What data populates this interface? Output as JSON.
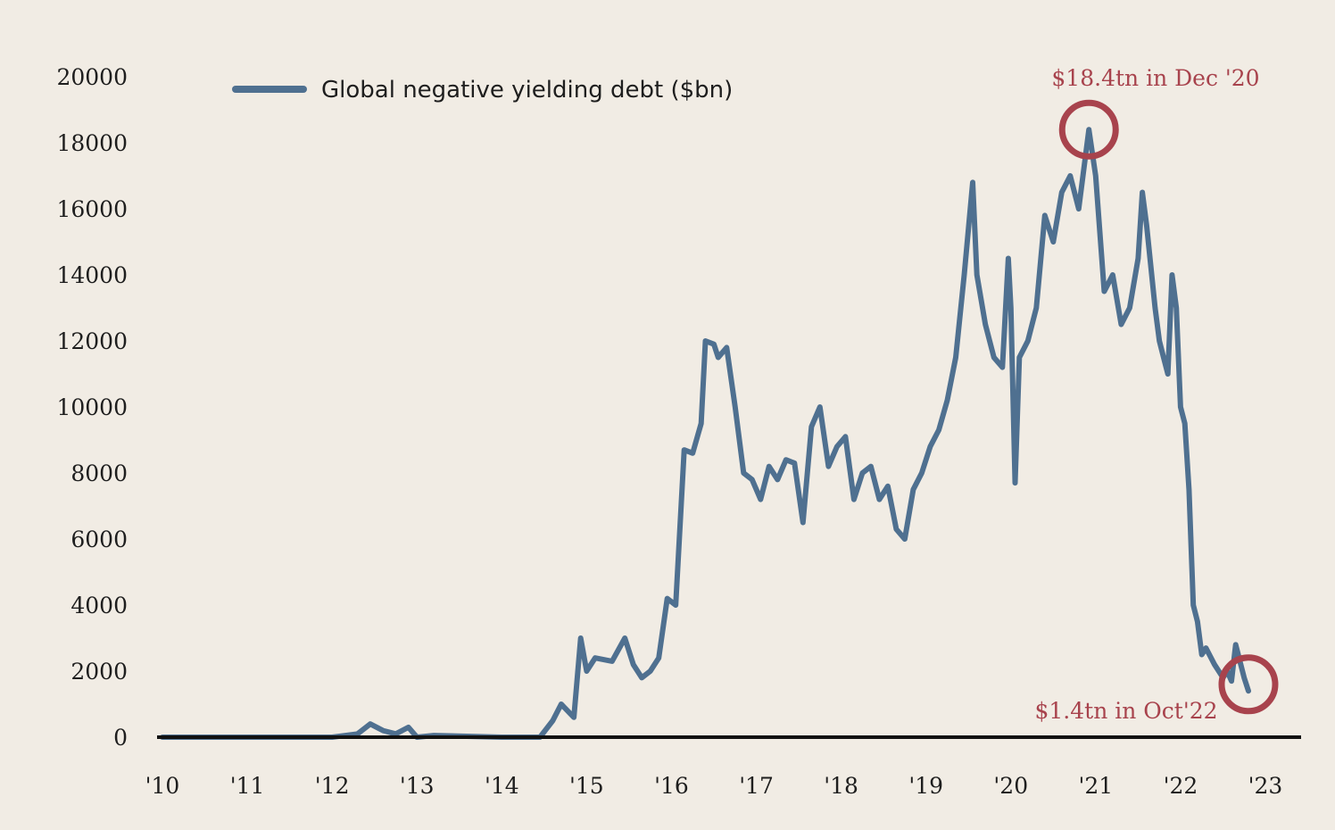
{
  "colors": {
    "background": "#f1ece4",
    "series": "#4f7090",
    "axis": "#111111",
    "annotation": "#a8434d"
  },
  "chart_data": {
    "type": "line",
    "title": "",
    "xlabel": "",
    "ylabel": "",
    "xlim": [
      2010.0,
      2022.85
    ],
    "ylim": [
      0,
      20000
    ],
    "grid": false,
    "legend_position": "top-left",
    "y_ticks": [
      "20000",
      "18000",
      "16000",
      "14000",
      "12000",
      "10000",
      "8000",
      "6000",
      "4000",
      "2000",
      "0"
    ],
    "x_ticks": [
      {
        "label": "'10",
        "value": 2010
      },
      {
        "label": "'11",
        "value": 2011
      },
      {
        "label": "'12",
        "value": 2012
      },
      {
        "label": "'13",
        "value": 2013
      },
      {
        "label": "'14",
        "value": 2014
      },
      {
        "label": "'15",
        "value": 2015
      },
      {
        "label": "'16",
        "value": 2016
      },
      {
        "label": "'17",
        "value": 2017
      },
      {
        "label": "'18",
        "value": 2018
      },
      {
        "label": "'19",
        "value": 2019
      },
      {
        "label": "'20",
        "value": 2020
      },
      {
        "label": "'21",
        "value": 2021
      },
      {
        "label": "'22",
        "value": 2022
      },
      {
        "label": "'23",
        "value": 2023
      }
    ],
    "series": [
      {
        "name": "Global negative yielding debt ($bn)",
        "x": [
          2010.0,
          2012.0,
          2012.3,
          2012.45,
          2012.6,
          2012.75,
          2012.9,
          2013.0,
          2013.2,
          2014.0,
          2014.45,
          2014.6,
          2014.7,
          2014.85,
          2014.93,
          2015.0,
          2015.1,
          2015.3,
          2015.45,
          2015.55,
          2015.65,
          2015.75,
          2015.85,
          2015.95,
          2016.05,
          2016.15,
          2016.25,
          2016.35,
          2016.4,
          2016.5,
          2016.55,
          2016.65,
          2016.75,
          2016.85,
          2016.95,
          2017.05,
          2017.15,
          2017.25,
          2017.35,
          2017.45,
          2017.55,
          2017.65,
          2017.75,
          2017.85,
          2017.95,
          2018.05,
          2018.15,
          2018.25,
          2018.35,
          2018.45,
          2018.55,
          2018.65,
          2018.75,
          2018.85,
          2018.95,
          2019.05,
          2019.15,
          2019.25,
          2019.35,
          2019.45,
          2019.55,
          2019.6,
          2019.7,
          2019.8,
          2019.9,
          2019.97,
          2020.0,
          2020.05,
          2020.1,
          2020.2,
          2020.3,
          2020.4,
          2020.5,
          2020.6,
          2020.7,
          2020.8,
          2020.92,
          2021.0,
          2021.1,
          2021.2,
          2021.3,
          2021.4,
          2021.5,
          2021.55,
          2021.6,
          2021.7,
          2021.75,
          2021.8,
          2021.85,
          2021.9,
          2021.95,
          2022.0,
          2022.05,
          2022.1,
          2022.15,
          2022.2,
          2022.25,
          2022.3,
          2022.4,
          2022.5,
          2022.55,
          2022.6,
          2022.65,
          2022.75,
          2022.8
        ],
        "values": [
          0,
          0,
          100,
          400,
          200,
          100,
          300,
          0,
          50,
          0,
          0,
          500,
          1000,
          600,
          3000,
          2000,
          2400,
          2300,
          3000,
          2200,
          1800,
          2000,
          2400,
          4200,
          4000,
          8700,
          8600,
          9500,
          12000,
          11900,
          11500,
          11800,
          10000,
          8000,
          7800,
          7200,
          8200,
          7800,
          8400,
          8300,
          6500,
          9400,
          10000,
          8200,
          8800,
          9100,
          7200,
          8000,
          8200,
          7200,
          7600,
          6300,
          6000,
          7500,
          8000,
          8800,
          9300,
          10200,
          11500,
          14000,
          16800,
          14000,
          12500,
          11500,
          11200,
          14500,
          13000,
          7700,
          11500,
          12000,
          13000,
          15800,
          15000,
          16500,
          17000,
          16000,
          18400,
          17000,
          13500,
          14000,
          12500,
          13000,
          14500,
          16500,
          15500,
          13000,
          12000,
          11500,
          11000,
          14000,
          13000,
          10000,
          9500,
          7500,
          4000,
          3500,
          2500,
          2700,
          2200,
          1800,
          2000,
          1700,
          2800,
          1800,
          1400
        ]
      }
    ],
    "annotations": [
      {
        "text": "$18.4tn in Dec '20",
        "x": 2020.92,
        "y": 18400
      },
      {
        "text": "$1.4tn in Oct'22",
        "x": 2022.8,
        "y": 1600
      }
    ]
  }
}
